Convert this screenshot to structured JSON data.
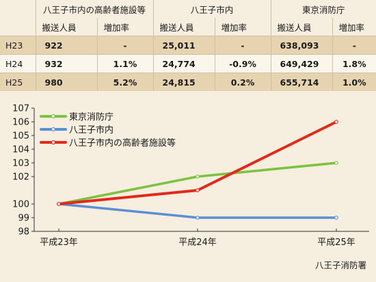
{
  "table": {
    "groups": [
      "八王子市内の高齢者施設等",
      "八王子市内",
      "東京消防庁"
    ],
    "subheaders": [
      "搬送人員",
      "増加率",
      "搬送人員",
      "増加率",
      "搬送人員",
      "増加率"
    ],
    "rows": [
      {
        "year": "H23",
        "cells": [
          "922",
          "-",
          "25,011",
          "-",
          "638,093",
          "-"
        ]
      },
      {
        "year": "H24",
        "cells": [
          "932",
          "1.1%",
          "24,774",
          "-0.9%",
          "649,429",
          "1.8%"
        ]
      },
      {
        "year": "H25",
        "cells": [
          "980",
          "5.2%",
          "24,815",
          "0.2%",
          "655,714",
          "1.0%"
        ]
      }
    ]
  },
  "chart_data": {
    "type": "line",
    "categories": [
      "平成23年",
      "平成24年",
      "平成25年"
    ],
    "ylim": [
      98,
      107
    ],
    "yticks": [
      98,
      99,
      100,
      102,
      103,
      104,
      105,
      106,
      107
    ],
    "series": [
      {
        "name": "東京消防庁",
        "values": [
          100,
          102,
          103
        ],
        "color": "#7cc242"
      },
      {
        "name": "八王子市内",
        "values": [
          100,
          99,
          99
        ],
        "color": "#5b8fd4"
      },
      {
        "name": "八王子市内の高齢者施設等",
        "values": [
          100,
          101,
          106
        ],
        "color": "#e02a1c"
      }
    ],
    "legend_position": "top-left",
    "grid": false
  },
  "source": "八王子消防署"
}
